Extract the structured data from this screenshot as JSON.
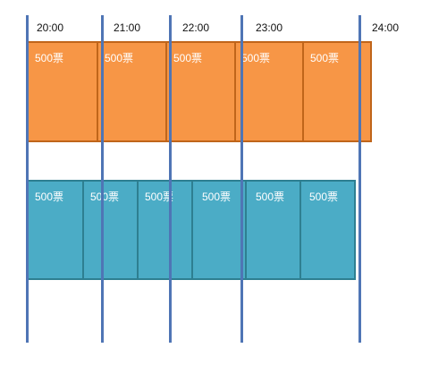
{
  "time_labels": [
    "20:00",
    "21:00",
    "22:00",
    "23:00",
    "24:00"
  ],
  "orange_row": {
    "color": "#f79646",
    "border_color": "#c0651a",
    "blocks": [
      "500票",
      "500票",
      "500票",
      "500票",
      "500票"
    ]
  },
  "teal_row": {
    "color": "#4bacc6",
    "border_color": "#2e7f91",
    "blocks": [
      "500票",
      "500票",
      "500票",
      "500票",
      "500票",
      "500票"
    ]
  },
  "gridline_color": "#4f75b5"
}
